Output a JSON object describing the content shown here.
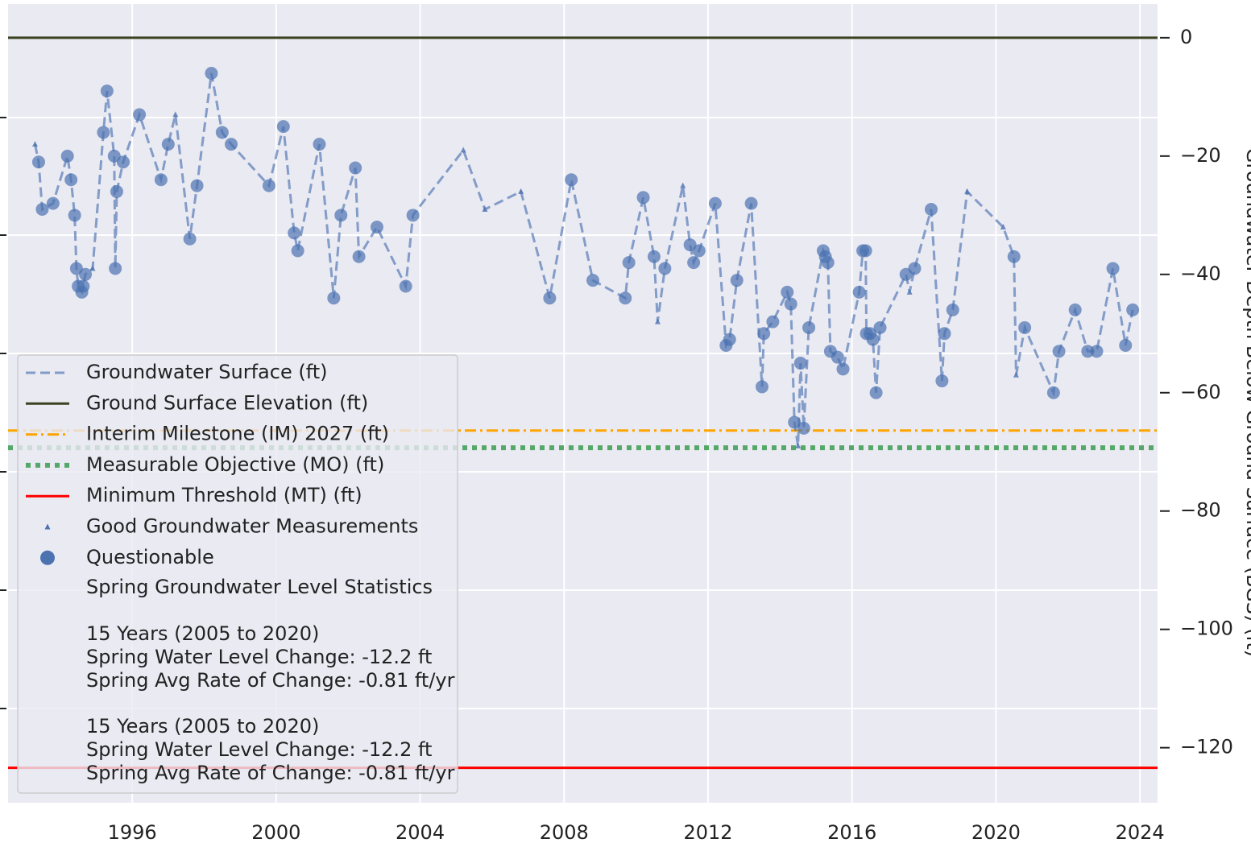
{
  "chart_data": {
    "type": "line",
    "y_label": "Groundwater Depth Below Ground Surface (BGS) (ft)",
    "xlim": [
      1992.55,
      2024.49
    ],
    "xticks": [
      1996,
      2000,
      2004,
      2008,
      2012,
      2016,
      2020,
      2024
    ],
    "ylim": [
      -129.3,
      5.7
    ],
    "yticks": [
      0,
      {
        "value": -20,
        "label": "−20"
      },
      {
        "value": -40,
        "label": "−40"
      },
      {
        "value": -60,
        "label": "−60"
      },
      {
        "value": -80,
        "label": "−80"
      },
      {
        "value": -100,
        "label": "−100"
      },
      {
        "value": -120,
        "label": "−120"
      }
    ],
    "grid": true,
    "series": [
      {
        "name": "Groundwater Surface (ft)",
        "kind": "line",
        "color": "#4c72b0",
        "x": [
          1993.3,
          1993.4,
          1993.5,
          1993.8,
          1994.2,
          1994.3,
          1994.4,
          1994.45,
          1994.5,
          1994.6,
          1994.64,
          1994.7,
          1994.9,
          1995.2,
          1995.3,
          1995.5,
          1995.53,
          1995.57,
          1995.75,
          1996.2,
          1996.8,
          1997.0,
          1997.2,
          1997.6,
          1997.8,
          1998.2,
          1998.5,
          1998.75,
          1999.8,
          2000.2,
          2000.5,
          2000.6,
          2001.2,
          2001.6,
          2001.8,
          2002.2,
          2002.3,
          2002.8,
          2003.6,
          2003.8,
          2005.2,
          2005.8,
          2006.8,
          2007.6,
          2008.2,
          2008.8,
          2009.7,
          2009.8,
          2010.2,
          2010.5,
          2010.6,
          2010.8,
          2011.3,
          2011.5,
          2011.6,
          2011.75,
          2012.2,
          2012.5,
          2012.6,
          2012.8,
          2013.2,
          2013.5,
          2013.55,
          2013.8,
          2014.2,
          2014.3,
          2014.4,
          2014.5,
          2014.57,
          2014.66,
          2014.8,
          2015.2,
          2015.26,
          2015.33,
          2015.4,
          2015.6,
          2015.75,
          2016.2,
          2016.3,
          2016.38,
          2016.4,
          2016.5,
          2016.58,
          2016.67,
          2016.78,
          2017.5,
          2017.6,
          2017.74,
          2018.2,
          2018.5,
          2018.57,
          2018.8,
          2019.2,
          2020.2,
          2020.5,
          2020.56,
          2020.8,
          2021.6,
          2021.75,
          2022.2,
          2022.55,
          2022.8,
          2023.25,
          2023.6,
          2023.8
        ],
        "values": [
          -18,
          -21,
          -29,
          -28,
          -20,
          -24,
          -30,
          -39,
          -42,
          -43,
          -42,
          -40,
          -39,
          -16,
          -9,
          -20,
          -39,
          -26,
          -21,
          -13,
          -24,
          -18,
          -13,
          -34,
          -25,
          -6,
          -16,
          -18,
          -25,
          -15,
          -33,
          -36,
          -18,
          -44,
          -30,
          -22,
          -37,
          -32,
          -42,
          -30,
          -19,
          -29,
          -26,
          -44,
          -24,
          -41,
          -44,
          -38,
          -27,
          -37,
          -48,
          -39,
          -25,
          -35,
          -38,
          -36,
          -28,
          -52,
          -51,
          -41,
          -28,
          -59,
          -50,
          -48,
          -43,
          -45,
          -65,
          -69,
          -55,
          -66,
          -49,
          -36,
          -37,
          -38,
          -53,
          -54,
          -56,
          -43,
          -36,
          -36,
          -50,
          -50,
          -51,
          -60,
          -49,
          -40,
          -43,
          -39,
          -29,
          -58,
          -50,
          -46,
          -26,
          -32,
          -37,
          -57,
          -49,
          -60,
          -53,
          -46,
          -53,
          -53,
          -39,
          -52,
          -46
        ]
      },
      {
        "name": "Good Groundwater Measurements",
        "kind": "triangle",
        "color": "#4c72b0",
        "x": [
          1993.3,
          1994.9,
          1997.2,
          2005.2,
          2005.8,
          2006.8,
          2010.6,
          2011.3,
          2014.5,
          2017.6,
          2019.2,
          2020.2,
          2020.56
        ],
        "values": [
          -18,
          -39,
          -13,
          -19,
          -29,
          -26,
          -48,
          -25,
          -69,
          -43,
          -26,
          -32,
          -57
        ]
      },
      {
        "name": "Questionable",
        "kind": "circle",
        "color": "#4c72b0",
        "x": [
          1993.4,
          1993.5,
          1993.8,
          1994.2,
          1994.3,
          1994.4,
          1994.45,
          1994.5,
          1994.6,
          1994.64,
          1994.7,
          1995.2,
          1995.3,
          1995.5,
          1995.53,
          1995.57,
          1995.75,
          1996.2,
          1996.8,
          1997.0,
          1997.6,
          1997.8,
          1998.2,
          1998.5,
          1998.75,
          1999.8,
          2000.2,
          2000.5,
          2000.6,
          2001.2,
          2001.6,
          2001.8,
          2002.2,
          2002.3,
          2002.8,
          2003.6,
          2003.8,
          2007.6,
          2008.2,
          2008.8,
          2009.7,
          2009.8,
          2010.2,
          2010.5,
          2010.8,
          2011.5,
          2011.6,
          2011.75,
          2012.2,
          2012.5,
          2012.6,
          2012.8,
          2013.2,
          2013.5,
          2013.55,
          2013.8,
          2014.2,
          2014.3,
          2014.4,
          2014.57,
          2014.66,
          2014.8,
          2015.2,
          2015.26,
          2015.33,
          2015.4,
          2015.6,
          2015.75,
          2016.2,
          2016.3,
          2016.38,
          2016.4,
          2016.5,
          2016.58,
          2016.67,
          2016.78,
          2017.5,
          2017.74,
          2018.2,
          2018.5,
          2018.57,
          2018.8,
          2020.5,
          2020.8,
          2021.6,
          2021.75,
          2022.2,
          2022.55,
          2022.8,
          2023.25,
          2023.6,
          2023.8
        ],
        "values": [
          -21,
          -29,
          -28,
          -20,
          -24,
          -30,
          -39,
          -42,
          -43,
          -42,
          -40,
          -16,
          -9,
          -20,
          -39,
          -26,
          -21,
          -13,
          -24,
          -18,
          -34,
          -25,
          -6,
          -16,
          -18,
          -25,
          -15,
          -33,
          -36,
          -18,
          -44,
          -30,
          -22,
          -37,
          -32,
          -42,
          -30,
          -44,
          -24,
          -41,
          -44,
          -38,
          -27,
          -37,
          -39,
          -35,
          -38,
          -36,
          -28,
          -52,
          -51,
          -41,
          -28,
          -59,
          -50,
          -48,
          -43,
          -45,
          -65,
          -55,
          -66,
          -49,
          -36,
          -37,
          -38,
          -53,
          -54,
          -56,
          -43,
          -36,
          -36,
          -50,
          -50,
          -51,
          -60,
          -49,
          -40,
          -39,
          -29,
          -58,
          -50,
          -46,
          -37,
          -49,
          -60,
          -53,
          -46,
          -53,
          -53,
          -39,
          -52,
          -46
        ]
      }
    ],
    "reference_lines": [
      {
        "name": "Ground Surface Elevation (ft)",
        "value": 0,
        "color": "#3b4220",
        "style": "solid"
      },
      {
        "name": "Interim Milestone (IM) 2027 (ft)",
        "value": -66.4,
        "color": "#ffa500",
        "style": "dashdot"
      },
      {
        "name": "Measurable Objective (MO) (ft)",
        "value": -69.3,
        "color": "#55a868",
        "style": "dotted"
      },
      {
        "name": "Minimum Threshold (MT) (ft)",
        "value": -123.4,
        "color": "#ff0000",
        "style": "solid"
      }
    ],
    "legend_notes": [
      "Spring Groundwater Level Statistics",
      "15 Years (2005 to 2020)",
      "Spring Water Level Change: -12.2 ft",
      "Spring Avg Rate of Change: -0.81 ft/yr",
      "15 Years (2005 to 2020)",
      "Spring Water Level Change: -12.2 ft",
      "Spring Avg Rate of Change: -0.81 ft/yr"
    ]
  }
}
